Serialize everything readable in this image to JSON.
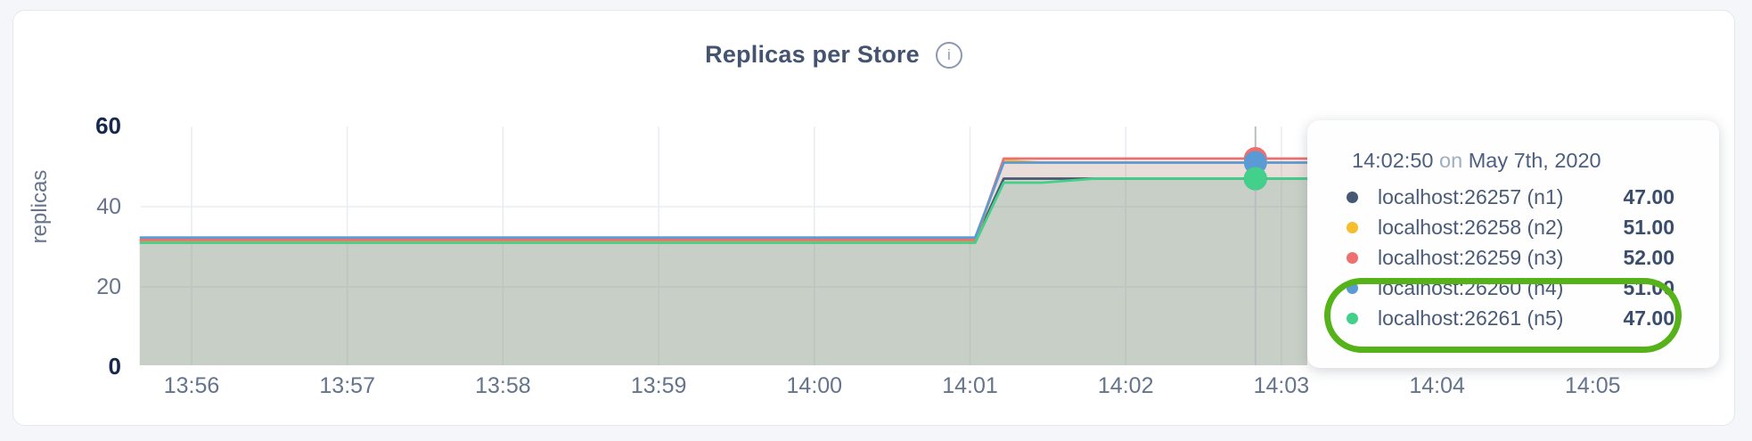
{
  "page": {
    "background": "#f4f6fa",
    "card_background": "#ffffff"
  },
  "header": {
    "title": "Replicas per Store",
    "info_icon_glyph": "i"
  },
  "tooltip": {
    "time": "14:02:50",
    "conjunction": "on",
    "date": "May 7th, 2020",
    "rows": [
      {
        "label": "localhost:26257 (n1)",
        "value": "47.00",
        "color": "#475872"
      },
      {
        "label": "localhost:26258 (n2)",
        "value": "51.00",
        "color": "#f5be2e"
      },
      {
        "label": "localhost:26259 (n3)",
        "value": "52.00",
        "color": "#ed6f6e"
      },
      {
        "label": "localhost:26260 (n4)",
        "value": "51.00",
        "color": "#5b9bd5"
      },
      {
        "label": "localhost:26261 (n5)",
        "value": "47.00",
        "color": "#43d08a"
      }
    ]
  },
  "annotation": {
    "shape": "green-ellipse",
    "color": "#55b219",
    "rows_highlighted": [
      "localhost:26260 (n4)",
      "localhost:26261 (n5)"
    ]
  },
  "chart_data": {
    "type": "area",
    "title": "Replicas per Store",
    "xlabel": "",
    "ylabel": "replicas",
    "ylim": [
      0,
      60
    ],
    "yticks": [
      0,
      20,
      40,
      60
    ],
    "ytick_emphasis": [
      0,
      60
    ],
    "xticks": [
      "13:56",
      "13:57",
      "13:58",
      "13:59",
      "14:00",
      "14:01",
      "14:02",
      "14:03",
      "14:04",
      "14:05"
    ],
    "grid": true,
    "legend_position": "tooltip",
    "hover_time": "14:02:50",
    "hover_line_color": "#b9bec2",
    "gridline_color": "#e9edf2",
    "series": [
      {
        "name": "localhost:26257 (n1)",
        "color": "#475872",
        "fill_opacity": 0.1,
        "hover_value": 47,
        "points": [
          [
            "13:55:40",
            31.5
          ],
          [
            "14:01:02",
            31.5
          ],
          [
            "14:01:13",
            47
          ],
          [
            "14:03:10",
            47
          ]
        ]
      },
      {
        "name": "localhost:26258 (n2)",
        "color": "#f5be2e",
        "fill_opacity": 0.1,
        "hover_value": 51,
        "points": [
          [
            "13:55:40",
            31.5
          ],
          [
            "14:01:02",
            31.5
          ],
          [
            "14:01:13",
            51.5
          ],
          [
            "14:01:28",
            51
          ],
          [
            "14:03:10",
            51
          ]
        ]
      },
      {
        "name": "localhost:26259 (n3)",
        "color": "#ed6f6e",
        "fill_opacity": 0.12,
        "hover_value": 52,
        "points": [
          [
            "13:55:40",
            31.7
          ],
          [
            "14:01:02",
            31.7
          ],
          [
            "14:01:13",
            52
          ],
          [
            "14:03:10",
            52
          ]
        ]
      },
      {
        "name": "localhost:26260 (n4)",
        "color": "#5b9bd5",
        "fill_opacity": 0.12,
        "hover_value": 51,
        "points": [
          [
            "13:55:40",
            32.3
          ],
          [
            "14:01:02",
            32.3
          ],
          [
            "14:01:13",
            51
          ],
          [
            "14:03:10",
            51
          ]
        ]
      },
      {
        "name": "localhost:26261 (n5)",
        "color": "#43d08a",
        "fill_opacity": 0.12,
        "hover_value": 47,
        "points": [
          [
            "13:55:40",
            31
          ],
          [
            "14:01:02",
            31
          ],
          [
            "14:01:13",
            46
          ],
          [
            "14:01:28",
            46
          ],
          [
            "14:01:48",
            47
          ],
          [
            "14:03:10",
            47
          ]
        ]
      }
    ]
  }
}
